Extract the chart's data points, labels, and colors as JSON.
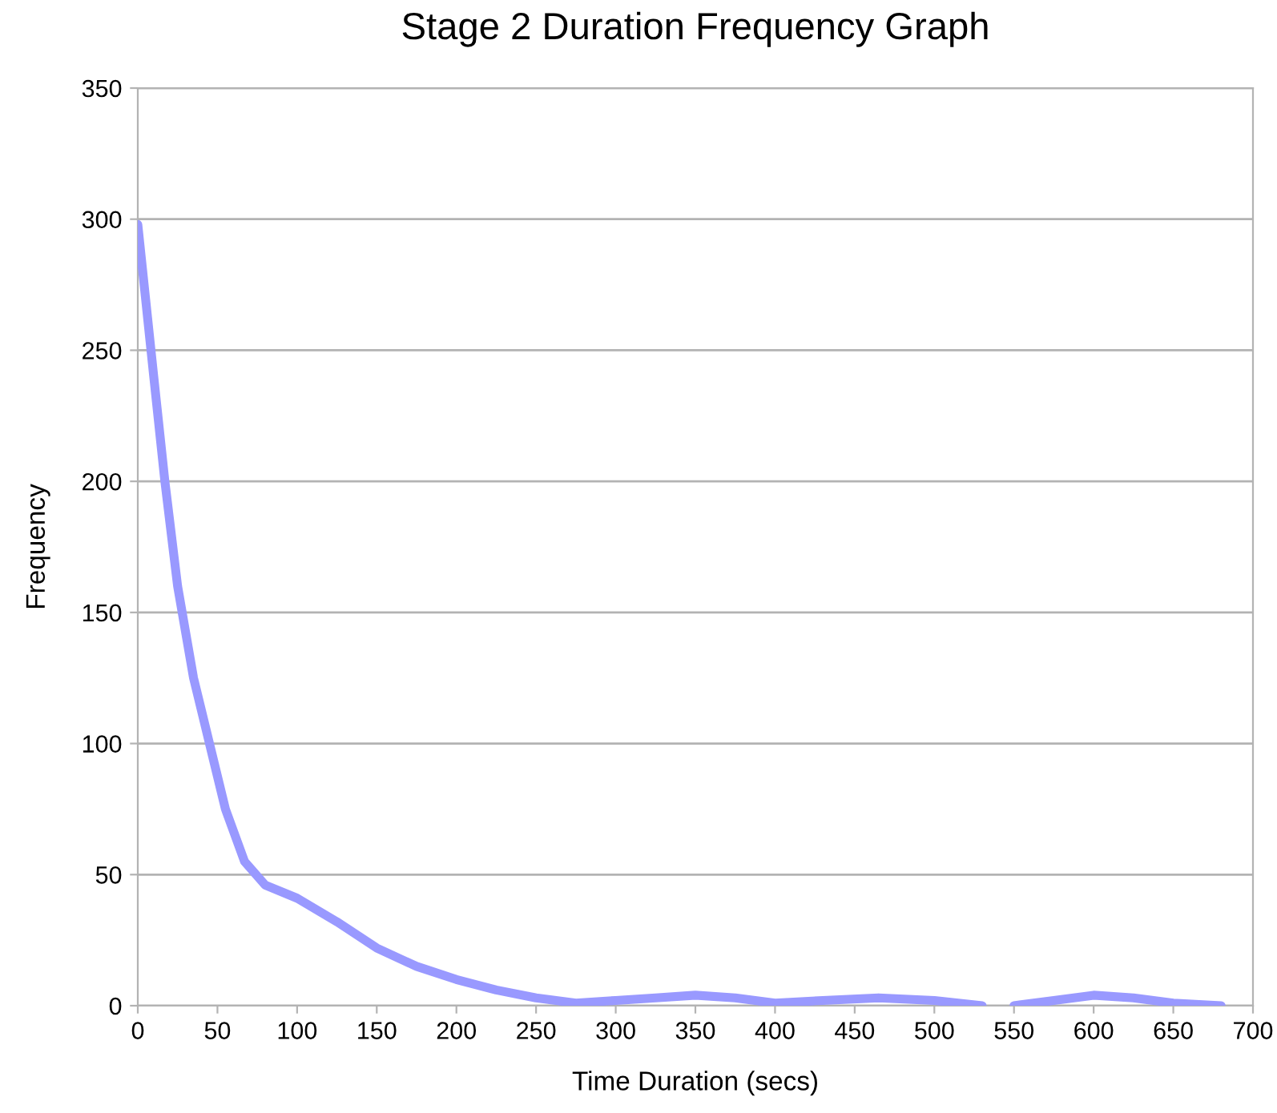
{
  "chart_data": {
    "type": "line",
    "title": "Stage 2 Duration Frequency Graph",
    "xlabel": "Time Duration (secs)",
    "ylabel": "Frequency",
    "series": [
      {
        "color": "#9999ff",
        "x": [
          0,
          10,
          17,
          25,
          35,
          45,
          55,
          67,
          80,
          100,
          125,
          150,
          175,
          200,
          225,
          250,
          275,
          300,
          325,
          350,
          375,
          400,
          430,
          465,
          500,
          530,
          540,
          550,
          575,
          600,
          625,
          650,
          680
        ],
        "values": [
          298,
          240,
          200,
          160,
          125,
          100,
          75,
          55,
          46,
          41,
          32,
          22,
          15,
          10,
          6,
          3,
          1,
          2,
          3,
          4,
          3,
          1,
          2,
          3,
          2,
          0,
          null,
          0,
          2,
          4,
          3,
          1,
          0
        ]
      }
    ],
    "xlim": [
      0,
      700
    ],
    "xticks": [
      0,
      50,
      100,
      150,
      200,
      250,
      300,
      350,
      400,
      450,
      500,
      550,
      600,
      650,
      700
    ],
    "ylim": [
      0,
      350
    ],
    "yticks": [
      0,
      50,
      100,
      150,
      200,
      250,
      300,
      350
    ],
    "grid": "y",
    "legend": false,
    "marker": "none",
    "line_style": "solid"
  }
}
